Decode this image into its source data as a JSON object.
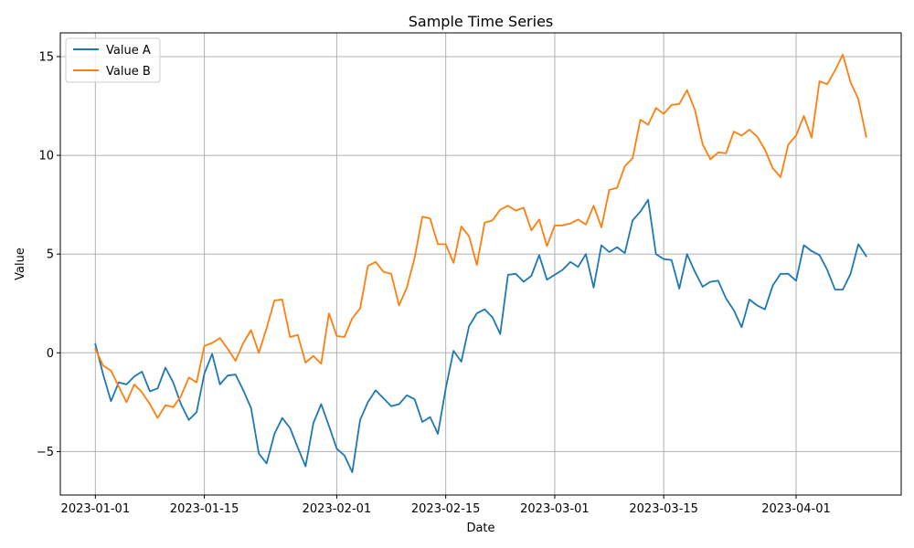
{
  "chart_data": {
    "type": "line",
    "title": "Sample Time Series",
    "xlabel": "Date",
    "ylabel": "Value",
    "x_start": "2023-01-01",
    "x_ticks": [
      "2023-01-01",
      "2023-01-15",
      "2023-02-01",
      "2023-02-15",
      "2023-03-01",
      "2023-03-15",
      "2023-04-01"
    ],
    "y_ticks": [
      -5,
      0,
      5,
      10,
      15
    ],
    "y_tick_labels": [
      "−5",
      "0",
      "5",
      "10",
      "15"
    ],
    "ylim": [
      -7.2,
      16.2
    ],
    "xlim": [
      "2022-12-27T12:00",
      "2023-04-14T12:00"
    ],
    "grid": true,
    "legend_position": "upper-left",
    "series": [
      {
        "name": "Value A",
        "color": "#1f77b4",
        "values": [
          0.45,
          -1.1,
          -2.45,
          -1.5,
          -1.6,
          -1.2,
          -0.95,
          -1.95,
          -1.8,
          -0.75,
          -1.5,
          -2.6,
          -3.4,
          -3.0,
          -1.05,
          -0.05,
          -1.6,
          -1.15,
          -1.1,
          -1.9,
          -2.8,
          -5.1,
          -5.6,
          -4.1,
          -3.3,
          -3.8,
          -4.8,
          -5.75,
          -3.55,
          -2.6,
          -3.7,
          -4.85,
          -5.2,
          -6.05,
          -3.4,
          -2.5,
          -1.9,
          -2.3,
          -2.7,
          -2.6,
          -2.15,
          -2.35,
          -3.5,
          -3.25,
          -4.1,
          -1.8,
          0.1,
          -0.45,
          1.35,
          2.0,
          2.2,
          1.8,
          0.95,
          3.95,
          4.0,
          3.6,
          3.9,
          4.95,
          3.7,
          3.95,
          4.2,
          4.6,
          4.35,
          5.0,
          3.3,
          5.45,
          5.1,
          5.35,
          5.05,
          6.7,
          7.15,
          7.75,
          5.0,
          4.75,
          4.7,
          3.25,
          5.0,
          4.1,
          3.35,
          3.6,
          3.65,
          2.75,
          2.15,
          1.3,
          2.7,
          2.4,
          2.2,
          3.4,
          4.0,
          4.0,
          3.65,
          5.45,
          5.15,
          4.95,
          4.2,
          3.2,
          3.2,
          4.0,
          5.5,
          4.9
        ]
      },
      {
        "name": "Value B",
        "color": "#ff7f0e",
        "values": [
          0.2,
          -0.65,
          -0.9,
          -1.7,
          -2.5,
          -1.6,
          -2.0,
          -2.6,
          -3.3,
          -2.65,
          -2.75,
          -2.2,
          -1.25,
          -1.5,
          0.35,
          0.5,
          0.75,
          0.2,
          -0.4,
          0.5,
          1.15,
          0.0,
          1.25,
          2.65,
          2.7,
          0.8,
          0.9,
          -0.5,
          -0.15,
          -0.55,
          2.0,
          0.85,
          0.8,
          1.75,
          2.25,
          4.4,
          4.6,
          4.1,
          4.0,
          2.4,
          3.3,
          4.8,
          6.9,
          6.8,
          5.5,
          5.5,
          4.55,
          6.4,
          5.9,
          4.45,
          6.6,
          6.7,
          7.25,
          7.45,
          7.2,
          7.35,
          6.2,
          6.75,
          5.4,
          6.45,
          6.45,
          6.55,
          6.75,
          6.5,
          7.45,
          6.35,
          8.25,
          8.35,
          9.45,
          9.85,
          11.8,
          11.55,
          12.4,
          12.1,
          12.55,
          12.6,
          13.3,
          12.3,
          10.55,
          9.8,
          10.15,
          10.1,
          11.2,
          11.0,
          11.3,
          10.95,
          10.3,
          9.35,
          8.9,
          10.55,
          11.0,
          12.0,
          10.9,
          13.75,
          13.6,
          14.3,
          15.1,
          13.7,
          12.85,
          10.95
        ]
      }
    ]
  }
}
